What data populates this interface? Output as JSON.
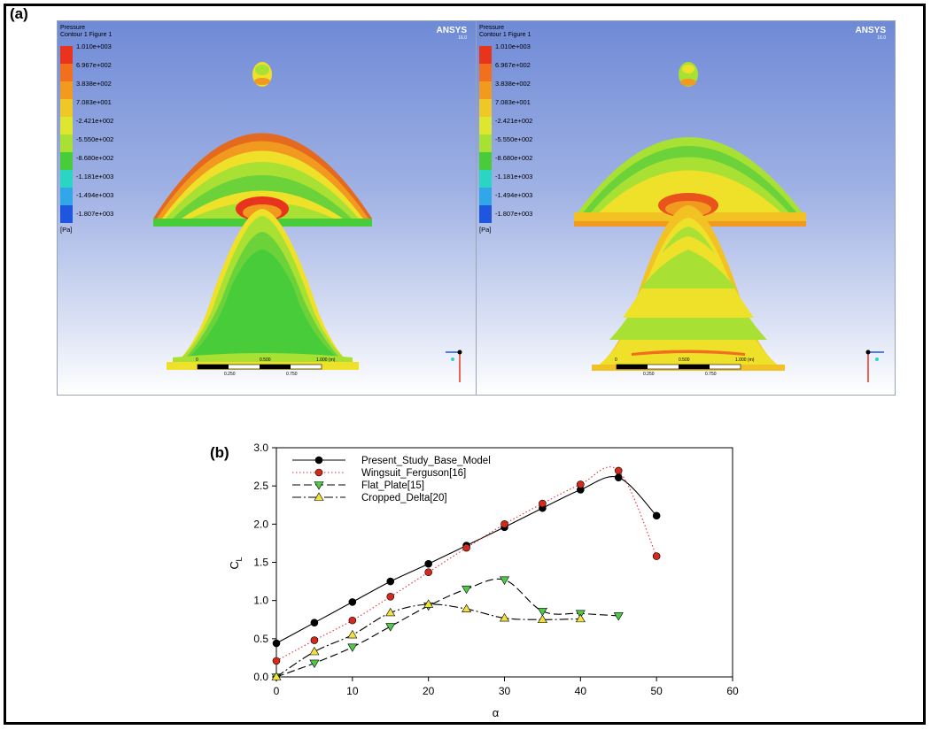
{
  "panel_a": {
    "label": "(a)",
    "figures": [
      {
        "title_line1": "Pressure",
        "title_line2": "Contour 1 Figure 1",
        "brand": "ANSYS",
        "version": "16.0"
      },
      {
        "title_line1": "Pressure",
        "title_line2": "Contour 1 Figure 1",
        "brand": "ANSYS",
        "version": "16.0"
      }
    ],
    "legend_levels": [
      "1.010e+003",
      "6.967e+002",
      "3.838e+002",
      "7.083e+001",
      "-2.421e+002",
      "-5.550e+002",
      "-8.680e+002",
      "-1.181e+003",
      "-1.494e+003",
      "-1.807e+003"
    ],
    "legend_unit": "[Pa]",
    "scale_top": [
      "0",
      "0.500",
      "1.000  (m)"
    ],
    "scale_bottom": [
      "0.250",
      "0.750"
    ],
    "colors": {
      "red": "#e8341c",
      "orange": "#f29a1f",
      "yellow": "#efe02a",
      "lightgreen": "#a9e034",
      "green": "#49cc3a",
      "cyan": "#2ad6c3",
      "lightblue": "#31a7e8",
      "blue": "#1f56e0"
    }
  },
  "panel_b": {
    "label": "(b)"
  },
  "chart_data": {
    "type": "line",
    "xlabel": "α",
    "ylabel": "C",
    "ylabel_sub": "L",
    "xlim": [
      0,
      60
    ],
    "ylim": [
      0,
      3.0
    ],
    "x_ticks": [
      0,
      10,
      20,
      30,
      40,
      50,
      60
    ],
    "y_ticks": [
      "0.0",
      "0.5",
      "1.0",
      "1.5",
      "2.0",
      "2.5",
      "3.0"
    ],
    "legend_position": "top-left",
    "series": [
      {
        "name": "Present_Study_Base_Model",
        "color": "#000000",
        "marker": "circle",
        "marker_fill": "#000000",
        "line": "solid",
        "x": [
          0,
          5,
          10,
          15,
          20,
          25,
          30,
          35,
          40,
          45,
          50
        ],
        "y": [
          0.44,
          0.71,
          0.98,
          1.25,
          1.48,
          1.72,
          1.96,
          2.21,
          2.45,
          2.61,
          2.11
        ]
      },
      {
        "name": "Wingsuit_Ferguson[16]",
        "color": "#e03030",
        "marker": "circle",
        "marker_fill": "#d42a1e",
        "line": "dotted",
        "x": [
          0,
          5,
          10,
          15,
          20,
          25,
          30,
          35,
          40,
          45,
          50
        ],
        "y": [
          0.21,
          0.48,
          0.74,
          1.05,
          1.37,
          1.69,
          2.0,
          2.27,
          2.52,
          2.7,
          1.58
        ]
      },
      {
        "name": "Flat_Plate[15]",
        "color": "#000000",
        "marker": "triangle-down",
        "marker_fill": "#4fc94a",
        "line": "dashed",
        "x": [
          0,
          5,
          10,
          15,
          20,
          25,
          30,
          35,
          40,
          45
        ],
        "y": [
          0.0,
          0.18,
          0.39,
          0.66,
          0.93,
          1.15,
          1.27,
          0.86,
          0.83,
          0.8
        ]
      },
      {
        "name": "Cropped_Delta[20]",
        "color": "#000000",
        "marker": "triangle-up",
        "marker_fill": "#f0e040",
        "line": "dashdot",
        "x": [
          0,
          5,
          10,
          15,
          20,
          25,
          30,
          35,
          40
        ],
        "y": [
          0.0,
          0.33,
          0.55,
          0.84,
          0.95,
          0.89,
          0.77,
          0.75,
          0.76
        ]
      }
    ]
  }
}
